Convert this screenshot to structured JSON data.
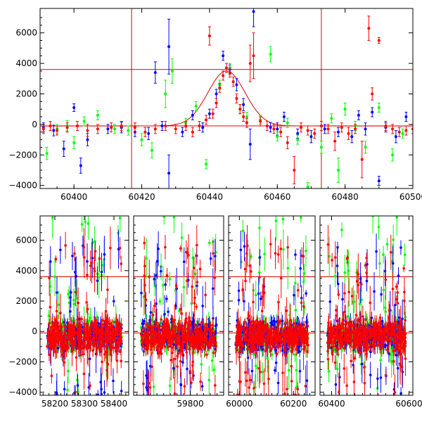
{
  "chart_data": [
    {
      "type": "scatter",
      "panel": "top",
      "title": "",
      "xlabel": "",
      "ylabel": "",
      "xlim": [
        60390,
        60500
      ],
      "ylim": [
        -4200,
        7600
      ],
      "xticks": [
        60400,
        60420,
        60440,
        60460,
        60480,
        60500
      ],
      "yticks": [
        -4000,
        -2000,
        0,
        2000,
        4000,
        6000
      ],
      "hlines": [
        3600,
        -100
      ],
      "vlines": [
        60417,
        60473
      ],
      "model_curve": {
        "center": 60445,
        "amplitude": 3600,
        "width": 5.5,
        "baseline": -100,
        "color": "#e00000"
      },
      "series": [
        {
          "color": "#0000ff",
          "points": [
            [
              60391,
              -200,
              300
            ],
            [
              60394,
              -400,
              350
            ],
            [
              60397,
              -1600,
              500
            ],
            [
              60400,
              1100,
              250
            ],
            [
              60402,
              -2700,
              500
            ],
            [
              60404,
              -1000,
              400
            ],
            [
              60410,
              -300,
              300
            ],
            [
              60414,
              -200,
              350
            ],
            [
              60418,
              -500,
              300
            ],
            [
              60422,
              -600,
              400
            ],
            [
              60424,
              3400,
              700
            ],
            [
              60426,
              -100,
              300
            ],
            [
              60428,
              5100,
              1800
            ],
            [
              60428,
              -3200,
              1200
            ],
            [
              60432,
              -500,
              300
            ],
            [
              60435,
              600,
              300
            ],
            [
              60438,
              -200,
              300
            ],
            [
              60440,
              700,
              300
            ],
            [
              60442,
              2000,
              300
            ],
            [
              60444,
              4500,
              300
            ],
            [
              60446,
              3600,
              300
            ],
            [
              60448,
              2600,
              400
            ],
            [
              60450,
              1300,
              400
            ],
            [
              60452,
              -1300,
              1000
            ],
            [
              60453,
              7400,
              1000
            ],
            [
              60458,
              -200,
              300
            ],
            [
              60460,
              -300,
              400
            ],
            [
              60462,
              500,
              300
            ],
            [
              60466,
              -600,
              300
            ],
            [
              60470,
              -800,
              400
            ],
            [
              60474,
              -300,
              300
            ],
            [
              60478,
              -500,
              300
            ],
            [
              60482,
              -800,
              400
            ],
            [
              60484,
              600,
              300
            ],
            [
              60486,
              -300,
              400
            ],
            [
              60488,
              800,
              300
            ],
            [
              60490,
              -3700,
              300
            ],
            [
              60492,
              -200,
              300
            ],
            [
              60495,
              -800,
              400
            ],
            [
              60498,
              500,
              300
            ]
          ]
        },
        {
          "color": "#00ff00",
          "points": [
            [
              60392,
              -1900,
              400
            ],
            [
              60395,
              -300,
              300
            ],
            [
              60398,
              -100,
              350
            ],
            [
              60400,
              -1200,
              400
            ],
            [
              60403,
              200,
              300
            ],
            [
              60407,
              600,
              300
            ],
            [
              60412,
              -300,
              300
            ],
            [
              60416,
              -400,
              300
            ],
            [
              60420,
              -1000,
              400
            ],
            [
              60423,
              -1700,
              500
            ],
            [
              60427,
              2000,
              900
            ],
            [
              60429,
              3500,
              800
            ],
            [
              60433,
              100,
              300
            ],
            [
              60436,
              1200,
              300
            ],
            [
              60439,
              -2600,
              300
            ],
            [
              60443,
              2600,
              300
            ],
            [
              60446,
              3700,
              300
            ],
            [
              60449,
              1000,
              300
            ],
            [
              60451,
              500,
              300
            ],
            [
              60455,
              300,
              300
            ],
            [
              60458,
              4600,
              500
            ],
            [
              60460,
              -800,
              300
            ],
            [
              60463,
              100,
              300
            ],
            [
              60466,
              -1000,
              300
            ],
            [
              60469,
              -4100,
              300
            ],
            [
              60473,
              -1500,
              400
            ],
            [
              60476,
              400,
              300
            ],
            [
              60478,
              -3000,
              800
            ],
            [
              60480,
              1000,
              400
            ],
            [
              60483,
              -100,
              300
            ],
            [
              60486,
              -1500,
              400
            ],
            [
              60490,
              1100,
              300
            ],
            [
              60494,
              -2000,
              400
            ],
            [
              60497,
              -600,
              300
            ]
          ]
        },
        {
          "color": "#ff0000",
          "points": [
            [
              60391,
              -300,
              300
            ],
            [
              60393,
              -100,
              300
            ],
            [
              60395,
              -400,
              300
            ],
            [
              60398,
              -200,
              300
            ],
            [
              60401,
              -100,
              300
            ],
            [
              60404,
              -400,
              400
            ],
            [
              60407,
              -300,
              300
            ],
            [
              60411,
              -200,
              300
            ],
            [
              60414,
              -100,
              300
            ],
            [
              60418,
              -200,
              300
            ],
            [
              60421,
              -500,
              300
            ],
            [
              60424,
              -300,
              300
            ],
            [
              60427,
              -100,
              300
            ],
            [
              60430,
              -300,
              300
            ],
            [
              60433,
              -100,
              300
            ],
            [
              60435,
              -500,
              300
            ],
            [
              60437,
              -100,
              300
            ],
            [
              60439,
              300,
              300
            ],
            [
              60440,
              5800,
              600
            ],
            [
              60441,
              700,
              300
            ],
            [
              60442,
              1400,
              300
            ],
            [
              60443,
              2400,
              300
            ],
            [
              60444,
              3200,
              300
            ],
            [
              60445,
              3700,
              300
            ],
            [
              60446,
              3400,
              300
            ],
            [
              60447,
              2800,
              300
            ],
            [
              60448,
              1700,
              300
            ],
            [
              60449,
              1000,
              300
            ],
            [
              60450,
              500,
              300
            ],
            [
              60451,
              100,
              300
            ],
            [
              60452,
              4000,
              1200
            ],
            [
              60453,
              4500,
              1500
            ],
            [
              60455,
              200,
              300
            ],
            [
              60457,
              -100,
              300
            ],
            [
              60459,
              -300,
              300
            ],
            [
              60461,
              -500,
              300
            ],
            [
              60463,
              -1200,
              400
            ],
            [
              60465,
              -3000,
              900
            ],
            [
              60467,
              -200,
              300
            ],
            [
              60469,
              -400,
              300
            ],
            [
              60471,
              -600,
              300
            ],
            [
              60473,
              -100,
              300
            ],
            [
              60475,
              -300,
              300
            ],
            [
              60477,
              -1100,
              600
            ],
            [
              60479,
              -200,
              300
            ],
            [
              60481,
              -600,
              400
            ],
            [
              60483,
              -300,
              300
            ],
            [
              60485,
              -2300,
              1200
            ],
            [
              60487,
              6300,
              800
            ],
            [
              60488,
              2000,
              400
            ],
            [
              60490,
              5500,
              200
            ],
            [
              60492,
              -100,
              300
            ],
            [
              60494,
              -300,
              300
            ],
            [
              60496,
              -500,
              300
            ],
            [
              60498,
              -400,
              300
            ],
            [
              60500,
              -300,
              300
            ]
          ]
        }
      ]
    },
    {
      "type": "scatter",
      "panel": "bottom",
      "title": "",
      "xlabel": "",
      "ylabel": "",
      "ylim": [
        -4200,
        7600
      ],
      "yticks": [
        -4000,
        -2000,
        0,
        2000,
        4000,
        6000
      ],
      "hlines": [
        3600,
        -100
      ],
      "segments": [
        {
          "xlim": [
            58150,
            58450
          ],
          "xticks": [
            58200,
            58300,
            58400
          ],
          "seed": 11
        },
        {
          "xlim": [
            59630,
            59900
          ],
          "xticks": [
            59800
          ],
          "seed": 23
        },
        {
          "xlim": [
            59960,
            60280
          ],
          "xticks": [
            60000,
            60200
          ],
          "seed": 37
        },
        {
          "xlim": [
            60370,
            60610
          ],
          "xticks": [
            60400,
            60600
          ],
          "seed": 51
        }
      ],
      "dense_band": {
        "center": -300,
        "spread": 600,
        "scatter_extent": [
          -4200,
          7600
        ],
        "colors": [
          "#00ff00",
          "#0000ff",
          "#ff0000"
        ],
        "points_per_segment": 260
      }
    }
  ]
}
